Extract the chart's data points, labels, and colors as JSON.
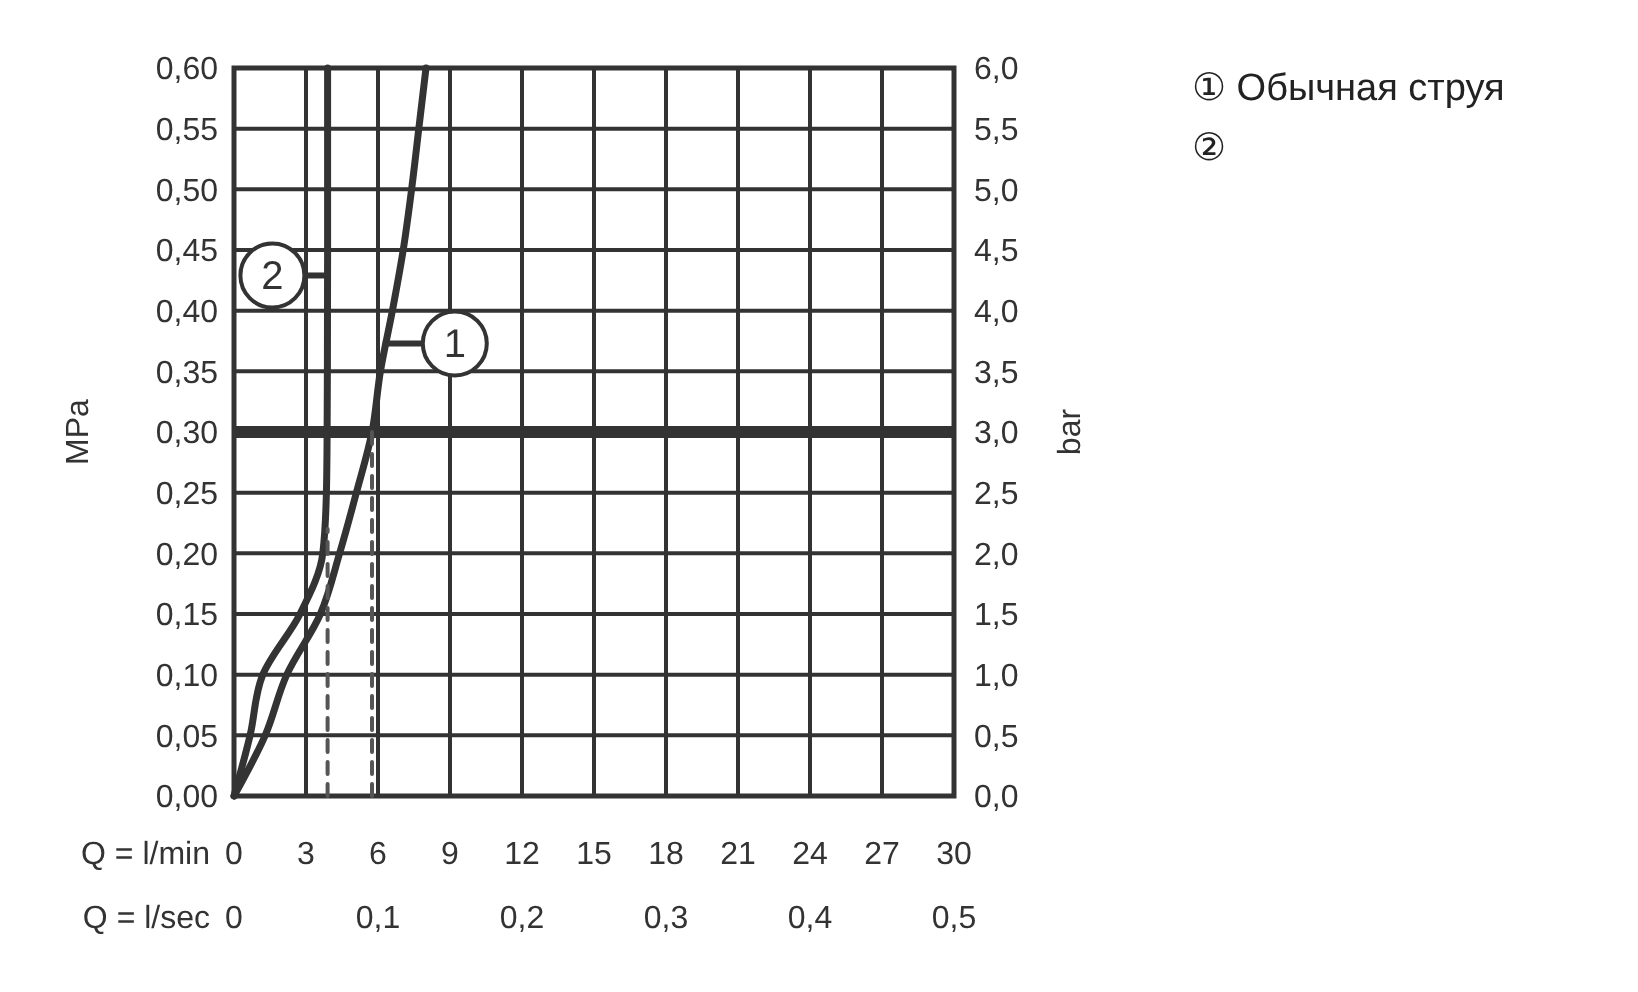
{
  "chart_data": {
    "type": "line",
    "xlabel": "Q = l/min",
    "x2label": "Q = l/sec",
    "ylabel": "MPa",
    "y2label": "bar",
    "xlim": [
      0,
      30
    ],
    "xticks": [
      0,
      3,
      6,
      9,
      12,
      15,
      18,
      21,
      24,
      27,
      30
    ],
    "x2lim": [
      0,
      0.5
    ],
    "x2ticks": [
      0,
      {
        "value": 0.1,
        "label": "0,1"
      },
      {
        "value": 0.2,
        "label": "0,2"
      },
      {
        "value": 0.3,
        "label": "0,3"
      },
      {
        "value": 0.4,
        "label": "0,4"
      },
      {
        "value": 0.5,
        "label": "0,5"
      }
    ],
    "ylim": [
      0,
      0.6
    ],
    "yticks": [
      {
        "value": 0,
        "label": "0,00"
      },
      {
        "value": 0.05,
        "label": "0,05"
      },
      {
        "value": 0.1,
        "label": "0,10"
      },
      {
        "value": 0.15,
        "label": "0,15"
      },
      {
        "value": 0.2,
        "label": "0,20"
      },
      {
        "value": 0.25,
        "label": "0,25"
      },
      {
        "value": 0.3,
        "label": "0,30"
      },
      {
        "value": 0.35,
        "label": "0,35"
      },
      {
        "value": 0.4,
        "label": "0,40"
      },
      {
        "value": 0.45,
        "label": "0,45"
      },
      {
        "value": 0.5,
        "label": "0,50"
      },
      {
        "value": 0.55,
        "label": "0,55"
      },
      {
        "value": 0.6,
        "label": "0,60"
      }
    ],
    "y2lim": [
      0,
      6
    ],
    "y2ticks": [
      {
        "value": 0,
        "label": "0,0"
      },
      {
        "value": 0.5,
        "label": "0,5"
      },
      {
        "value": 1,
        "label": "1,0"
      },
      {
        "value": 1.5,
        "label": "1,5"
      },
      {
        "value": 2,
        "label": "2,0"
      },
      {
        "value": 2.5,
        "label": "2,5"
      },
      {
        "value": 3,
        "label": "3,0"
      },
      {
        "value": 3.5,
        "label": "3,5"
      },
      {
        "value": 4,
        "label": "4,0"
      },
      {
        "value": 4.5,
        "label": "4,5"
      },
      {
        "value": 5,
        "label": "5,0"
      },
      {
        "value": 5.5,
        "label": "5,5"
      },
      {
        "value": 6,
        "label": "6,0"
      }
    ],
    "grid": true,
    "line_style": "solid",
    "series": [
      {
        "color": "#333333",
        "x": [
          0,
          1.3,
          2.2,
          3.6,
          4.4,
          5.1,
          5.75,
          6.1,
          6.6,
          7.05,
          7.4,
          7.7,
          8.0
        ],
        "values": [
          0,
          0.05,
          0.1,
          0.15,
          0.2,
          0.25,
          0.3,
          0.35,
          0.4,
          0.45,
          0.5,
          0.55,
          0.6
        ]
      },
      {
        "color": "#333333",
        "x": [
          0,
          0.67,
          1.2,
          2.75,
          3.7,
          3.85,
          3.88,
          3.9,
          3.9
        ],
        "values": [
          0,
          0.05,
          0.1,
          0.15,
          0.2,
          0.25,
          0.3,
          0.45,
          0.6
        ]
      },
      {
        "color": "#555555",
        "line_style": "dashed",
        "x": [
          3.9,
          3.9
        ],
        "values": [
          0,
          0.22
        ]
      },
      {
        "color": "#555555",
        "line_style": "dashed",
        "x": [
          5.75,
          5.75
        ],
        "values": [
          0,
          0.3
        ]
      }
    ],
    "ref_lines": [
      {
        "axis": "y",
        "value": 0.3,
        "color": "#333333"
      }
    ],
    "annotations": [
      {
        "text": "1",
        "x": 6.2,
        "y": 0.373
      },
      {
        "text": "2",
        "x": 3.85,
        "y": 0.429
      },
      "① Обычная струя",
      "②"
    ]
  }
}
